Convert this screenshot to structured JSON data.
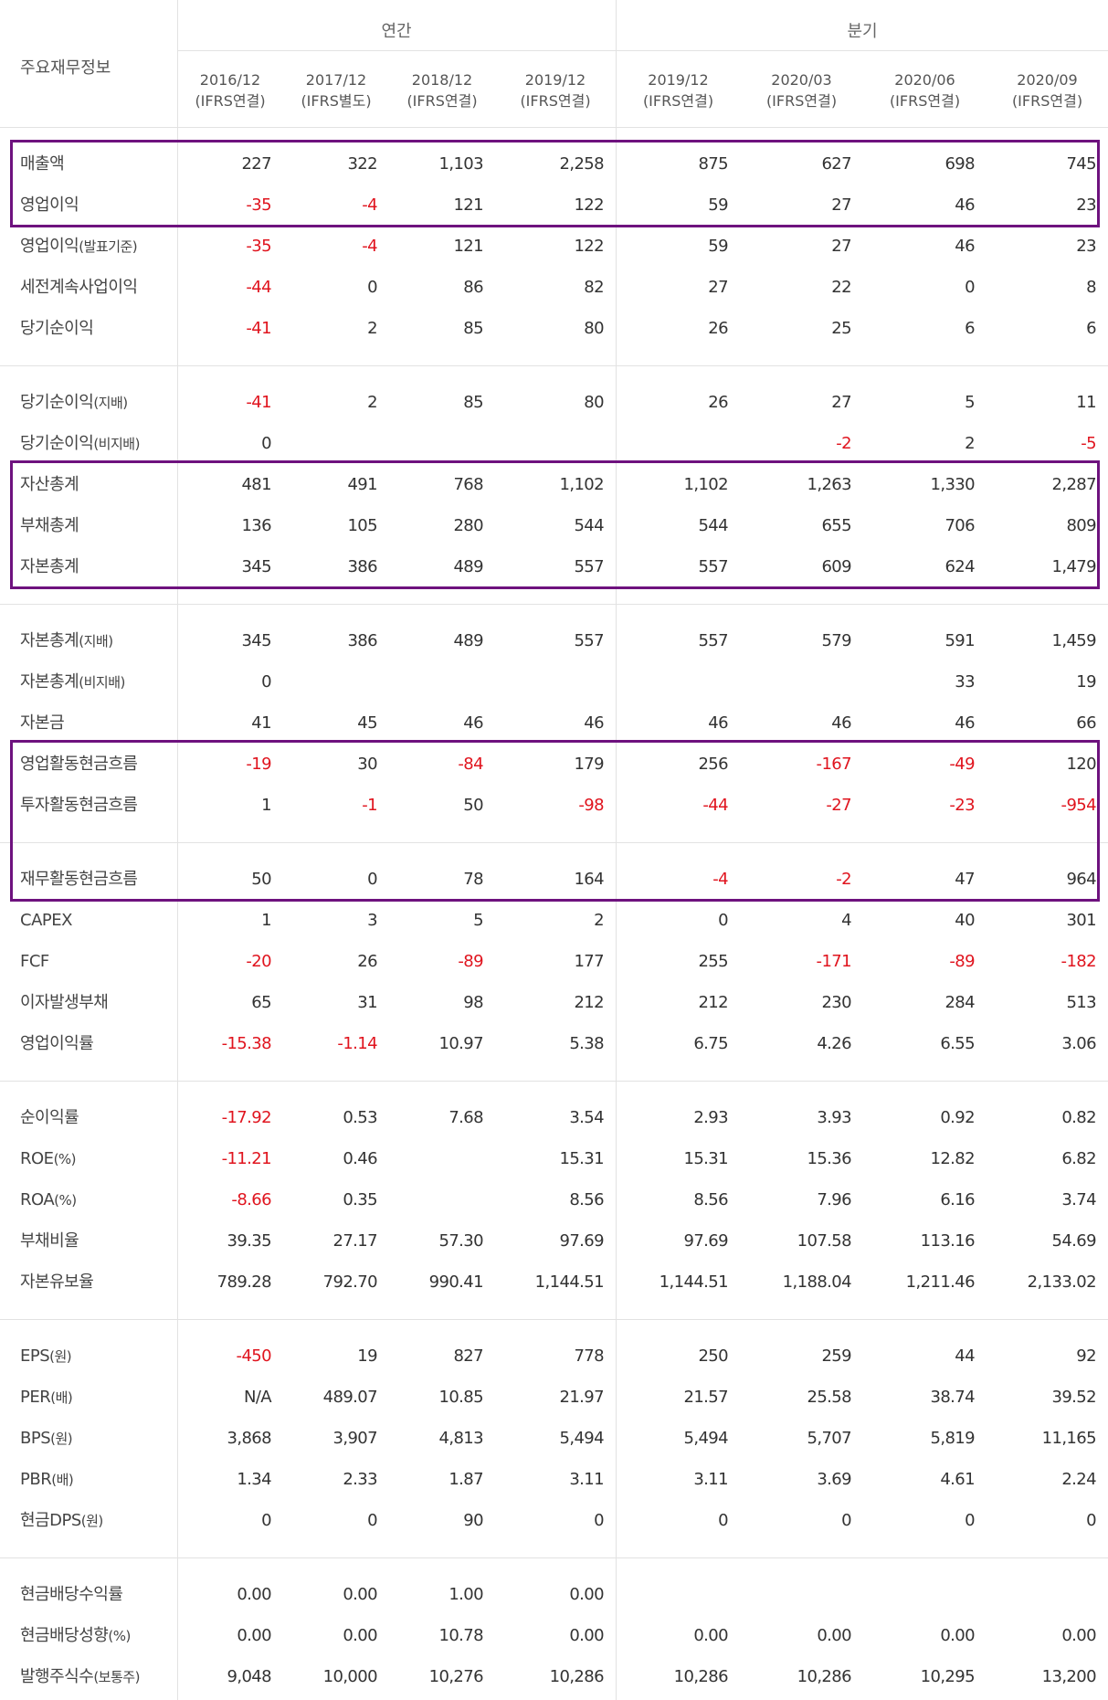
{
  "header": {
    "title": "주요재무정보",
    "sections": [
      "연간",
      "분기"
    ],
    "periods": [
      {
        "date": "2016/12",
        "basis": "(IFRS연결)"
      },
      {
        "date": "2017/12",
        "basis": "(IFRS별도)"
      },
      {
        "date": "2018/12",
        "basis": "(IFRS연결)"
      },
      {
        "date": "2019/12",
        "basis": "(IFRS연결)"
      },
      {
        "date": "2019/12",
        "basis": "(IFRS연결)"
      },
      {
        "date": "2020/03",
        "basis": "(IFRS연결)"
      },
      {
        "date": "2020/06",
        "basis": "(IFRS연결)"
      },
      {
        "date": "2020/09",
        "basis": "(IFRS연결)"
      }
    ]
  },
  "rows": [
    {
      "label": "매출액",
      "sub": "",
      "values": [
        "227",
        "322",
        "1,103",
        "2,258",
        "875",
        "627",
        "698",
        "745"
      ],
      "group_end": false
    },
    {
      "label": "영업이익",
      "sub": "",
      "values": [
        "-35",
        "-4",
        "121",
        "122",
        "59",
        "27",
        "46",
        "23"
      ],
      "group_end": false
    },
    {
      "label": "영업이익",
      "sub": "(발표기준)",
      "values": [
        "-35",
        "-4",
        "121",
        "122",
        "59",
        "27",
        "46",
        "23"
      ],
      "group_end": false
    },
    {
      "label": "세전계속사업이익",
      "sub": "",
      "values": [
        "-44",
        "0",
        "86",
        "82",
        "27",
        "22",
        "0",
        "8"
      ],
      "group_end": false
    },
    {
      "label": "당기순이익",
      "sub": "",
      "values": [
        "-41",
        "2",
        "85",
        "80",
        "26",
        "25",
        "6",
        "6"
      ],
      "group_end": true
    },
    {
      "label": "당기순이익",
      "sub": "(지배)",
      "values": [
        "-41",
        "2",
        "85",
        "80",
        "26",
        "27",
        "5",
        "11"
      ],
      "group_end": false
    },
    {
      "label": "당기순이익",
      "sub": "(비지배)",
      "values": [
        "0",
        "",
        "",
        "",
        "",
        "-2",
        "2",
        "-5"
      ],
      "group_end": false
    },
    {
      "label": "자산총계",
      "sub": "",
      "values": [
        "481",
        "491",
        "768",
        "1,102",
        "1,102",
        "1,263",
        "1,330",
        "2,287"
      ],
      "group_end": false
    },
    {
      "label": "부채총계",
      "sub": "",
      "values": [
        "136",
        "105",
        "280",
        "544",
        "544",
        "655",
        "706",
        "809"
      ],
      "group_end": false
    },
    {
      "label": "자본총계",
      "sub": "",
      "values": [
        "345",
        "386",
        "489",
        "557",
        "557",
        "609",
        "624",
        "1,479"
      ],
      "group_end": true
    },
    {
      "label": "자본총계",
      "sub": "(지배)",
      "values": [
        "345",
        "386",
        "489",
        "557",
        "557",
        "579",
        "591",
        "1,459"
      ],
      "group_end": false
    },
    {
      "label": "자본총계",
      "sub": "(비지배)",
      "values": [
        "0",
        "",
        "",
        "",
        "",
        "",
        "33",
        "19"
      ],
      "group_end": false
    },
    {
      "label": "자본금",
      "sub": "",
      "values": [
        "41",
        "45",
        "46",
        "46",
        "46",
        "46",
        "46",
        "66"
      ],
      "group_end": false
    },
    {
      "label": "영업활동현금흐름",
      "sub": "",
      "values": [
        "-19",
        "30",
        "-84",
        "179",
        "256",
        "-167",
        "-49",
        "120"
      ],
      "group_end": false
    },
    {
      "label": "투자활동현금흐름",
      "sub": "",
      "values": [
        "1",
        "-1",
        "50",
        "-98",
        "-44",
        "-27",
        "-23",
        "-954"
      ],
      "group_end": true
    },
    {
      "label": "재무활동현금흐름",
      "sub": "",
      "values": [
        "50",
        "0",
        "78",
        "164",
        "-4",
        "-2",
        "47",
        "964"
      ],
      "group_end": false
    },
    {
      "label": "CAPEX",
      "sub": "",
      "values": [
        "1",
        "3",
        "5",
        "2",
        "0",
        "4",
        "40",
        "301"
      ],
      "group_end": false
    },
    {
      "label": "FCF",
      "sub": "",
      "values": [
        "-20",
        "26",
        "-89",
        "177",
        "255",
        "-171",
        "-89",
        "-182"
      ],
      "group_end": false
    },
    {
      "label": "이자발생부채",
      "sub": "",
      "values": [
        "65",
        "31",
        "98",
        "212",
        "212",
        "230",
        "284",
        "513"
      ],
      "group_end": false
    },
    {
      "label": "영업이익률",
      "sub": "",
      "values": [
        "-15.38",
        "-1.14",
        "10.97",
        "5.38",
        "6.75",
        "4.26",
        "6.55",
        "3.06"
      ],
      "group_end": true
    },
    {
      "label": "순이익률",
      "sub": "",
      "values": [
        "-17.92",
        "0.53",
        "7.68",
        "3.54",
        "2.93",
        "3.93",
        "0.92",
        "0.82"
      ],
      "group_end": false
    },
    {
      "label": "ROE",
      "sub": "(%)",
      "values": [
        "-11.21",
        "0.46",
        "",
        "15.31",
        "15.31",
        "15.36",
        "12.82",
        "6.82"
      ],
      "group_end": false
    },
    {
      "label": "ROA",
      "sub": "(%)",
      "values": [
        "-8.66",
        "0.35",
        "",
        "8.56",
        "8.56",
        "7.96",
        "6.16",
        "3.74"
      ],
      "group_end": false
    },
    {
      "label": "부채비율",
      "sub": "",
      "values": [
        "39.35",
        "27.17",
        "57.30",
        "97.69",
        "97.69",
        "107.58",
        "113.16",
        "54.69"
      ],
      "group_end": false
    },
    {
      "label": "자본유보율",
      "sub": "",
      "values": [
        "789.28",
        "792.70",
        "990.41",
        "1,144.51",
        "1,144.51",
        "1,188.04",
        "1,211.46",
        "2,133.02"
      ],
      "group_end": true
    },
    {
      "label": "EPS",
      "sub": "(원)",
      "values": [
        "-450",
        "19",
        "827",
        "778",
        "250",
        "259",
        "44",
        "92"
      ],
      "group_end": false
    },
    {
      "label": "PER",
      "sub": "(배)",
      "values": [
        "N/A",
        "489.07",
        "10.85",
        "21.97",
        "21.57",
        "25.58",
        "38.74",
        "39.52"
      ],
      "group_end": false
    },
    {
      "label": "BPS",
      "sub": "(원)",
      "values": [
        "3,868",
        "3,907",
        "4,813",
        "5,494",
        "5,494",
        "5,707",
        "5,819",
        "11,165"
      ],
      "group_end": false
    },
    {
      "label": "PBR",
      "sub": "(배)",
      "values": [
        "1.34",
        "2.33",
        "1.87",
        "3.11",
        "3.11",
        "3.69",
        "4.61",
        "2.24"
      ],
      "group_end": false
    },
    {
      "label": "현금DPS",
      "sub": "(원)",
      "values": [
        "0",
        "0",
        "90",
        "0",
        "0",
        "0",
        "0",
        "0"
      ],
      "group_end": true
    },
    {
      "label": "현금배당수익률",
      "sub": "",
      "values": [
        "0.00",
        "0.00",
        "1.00",
        "0.00",
        "",
        "",
        "",
        ""
      ],
      "group_end": false
    },
    {
      "label": "현금배당성향",
      "sub": "(%)",
      "values": [
        "0.00",
        "0.00",
        "10.78",
        "0.00",
        "0.00",
        "0.00",
        "0.00",
        "0.00"
      ],
      "group_end": false
    },
    {
      "label": "발행주식수",
      "sub": "(보통주)",
      "values": [
        "9,048",
        "10,000",
        "10,276",
        "10,286",
        "10,286",
        "10,286",
        "10,295",
        "13,200"
      ],
      "group_end": false
    }
  ],
  "highlight_color": "#6e127e",
  "negative_color": "#e0141e",
  "highlighted_groups": [
    [
      "매출액",
      "영업이익"
    ],
    [
      "자산총계",
      "부채총계",
      "자본총계"
    ],
    [
      "영업활동현금흐름",
      "투자활동현금흐름",
      "재무활동현금흐름"
    ]
  ]
}
